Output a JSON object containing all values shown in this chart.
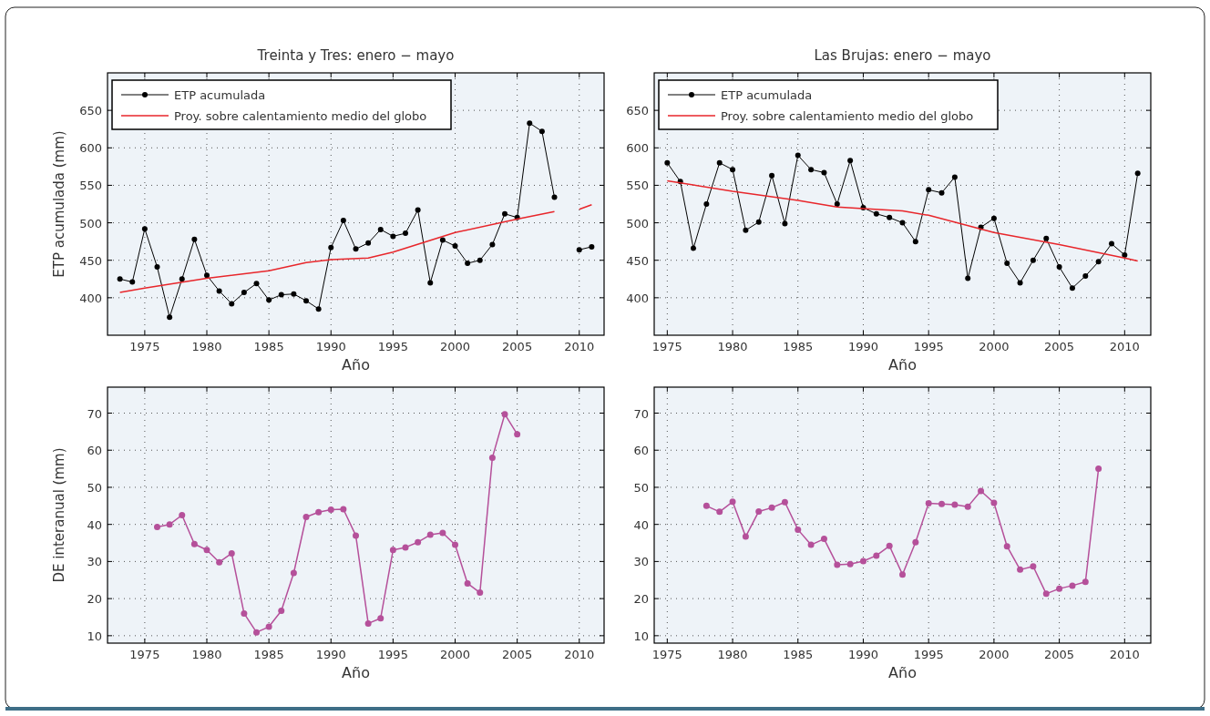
{
  "chart_data": [
    {
      "type": "line",
      "title": "Treinta y Tres: enero − mayo",
      "xlabel": "Año",
      "ylabel": "ETP acumulada (mm)",
      "xlim": [
        1972,
        2012
      ],
      "xticks": [
        1975,
        1980,
        1985,
        1990,
        1995,
        2000,
        2005,
        2010
      ],
      "ylim": [
        350,
        700
      ],
      "yticks": [
        400,
        450,
        500,
        550,
        600,
        650
      ],
      "grid": true,
      "legend": "top left",
      "series": [
        {
          "name": "ETP acumulada",
          "color": "#000000",
          "marker": "circle",
          "x": [
            1973,
            1974,
            1975,
            1976,
            1977,
            1978,
            1979,
            1980,
            1981,
            1982,
            1983,
            1984,
            1985,
            1986,
            1987,
            1988,
            1989,
            1990,
            1991,
            1992,
            1993,
            1994,
            1995,
            1996,
            1997,
            1998,
            1999,
            2000,
            2001,
            2002,
            2003,
            2004,
            2005,
            2006,
            2007,
            2008,
            2009,
            2010,
            2011
          ],
          "values": [
            425,
            421,
            492,
            441,
            374,
            425,
            478,
            430,
            409,
            392,
            407,
            419,
            397,
            404,
            405,
            396,
            385,
            467,
            503,
            465,
            473,
            491,
            482,
            486,
            517,
            420,
            477,
            469,
            446,
            450,
            471,
            512,
            507,
            633,
            622,
            534,
            null,
            464,
            468
          ]
        },
        {
          "name": "Proy. sobre calentamiento medio del globo",
          "color": "#e8262b",
          "marker": "none",
          "x": [
            1973,
            1975,
            1980,
            1985,
            1988,
            1990,
            1993,
            1995,
            2000,
            2005,
            2008,
            2009,
            2010,
            2011
          ],
          "values": [
            407,
            413,
            426,
            436,
            447,
            451,
            453,
            461,
            487,
            505,
            515,
            null,
            518,
            524
          ]
        }
      ]
    },
    {
      "type": "line",
      "title": "Las Brujas: enero − mayo",
      "xlabel": "Año",
      "xlim": [
        1974,
        2012
      ],
      "xticks": [
        1975,
        1980,
        1985,
        1990,
        1995,
        2000,
        2005,
        2010
      ],
      "ylim": [
        350,
        700
      ],
      "yticks": [
        400,
        450,
        500,
        550,
        600,
        650
      ],
      "grid": true,
      "legend": "top left",
      "series": [
        {
          "name": "ETP acumulada",
          "color": "#000000",
          "marker": "circle",
          "x": [
            1975,
            1976,
            1977,
            1978,
            1979,
            1980,
            1981,
            1982,
            1983,
            1984,
            1985,
            1986,
            1987,
            1988,
            1989,
            1990,
            1991,
            1992,
            1993,
            1994,
            1995,
            1996,
            1997,
            1998,
            1999,
            2000,
            2001,
            2002,
            2003,
            2004,
            2005,
            2006,
            2007,
            2008,
            2009,
            2010,
            2011
          ],
          "values": [
            580,
            555,
            466,
            525,
            580,
            571,
            490,
            501,
            563,
            499,
            590,
            571,
            567,
            525,
            583,
            520,
            512,
            507,
            500,
            475,
            544,
            540,
            561,
            426,
            494,
            506,
            446,
            420,
            450,
            479,
            441,
            413,
            429,
            448,
            472,
            457,
            566
          ]
        },
        {
          "name": "Proy. sobre calentamiento medio del globo",
          "color": "#e8262b",
          "marker": "none",
          "x": [
            1975,
            1980,
            1985,
            1988,
            1990,
            1993,
            1995,
            2000,
            2005,
            2010,
            2011
          ],
          "values": [
            556,
            542,
            530,
            521,
            519,
            516,
            510,
            487,
            471,
            453,
            449
          ]
        }
      ]
    },
    {
      "type": "line",
      "xlabel": "Año",
      "ylabel": "DE interanual (mm)",
      "xlim": [
        1972,
        2012
      ],
      "xticks": [
        1975,
        1980,
        1985,
        1990,
        1995,
        2000,
        2005,
        2010
      ],
      "ylim": [
        8,
        77
      ],
      "yticks": [
        10,
        20,
        30,
        40,
        50,
        60,
        70
      ],
      "grid": true,
      "series": [
        {
          "color": "#b5509a",
          "marker": "circle",
          "x": [
            1976,
            1977,
            1978,
            1979,
            1980,
            1981,
            1982,
            1983,
            1984,
            1985,
            1986,
            1987,
            1988,
            1989,
            1990,
            1991,
            1992,
            1993,
            1994,
            1995,
            1996,
            1997,
            1998,
            1999,
            2000,
            2001,
            2002,
            2003,
            2004,
            2005
          ],
          "values": [
            39.3,
            40,
            42.5,
            34.7,
            33.1,
            29.8,
            32.2,
            16,
            10.9,
            12.4,
            16.7,
            26.9,
            42,
            43.3,
            44,
            44.1,
            37,
            13.3,
            14.7,
            33.1,
            33.8,
            35.2,
            37.2,
            37.7,
            34.5,
            24.1,
            21.6,
            58,
            69.7,
            64.3
          ]
        }
      ]
    },
    {
      "type": "line",
      "xlabel": "Año",
      "xlim": [
        1974,
        2012
      ],
      "xticks": [
        1975,
        1980,
        1985,
        1990,
        1995,
        2000,
        2005,
        2010
      ],
      "ylim": [
        8,
        77
      ],
      "yticks": [
        10,
        20,
        30,
        40,
        50,
        60,
        70
      ],
      "grid": true,
      "series": [
        {
          "color": "#b5509a",
          "marker": "circle",
          "x": [
            1978,
            1979,
            1980,
            1981,
            1982,
            1983,
            1984,
            1985,
            1986,
            1987,
            1988,
            1989,
            1990,
            1991,
            1992,
            1993,
            1994,
            1995,
            1996,
            1997,
            1998,
            1999,
            2000,
            2001,
            2002,
            2003,
            2004,
            2005,
            2006,
            2007,
            2008
          ],
          "values": [
            45,
            43.4,
            46.1,
            36.7,
            43.5,
            44.5,
            46,
            38.6,
            34.5,
            36.1,
            29.1,
            29.3,
            30.1,
            31.6,
            34.2,
            26.5,
            35.2,
            45.7,
            45.5,
            45.3,
            44.8,
            49,
            45.8,
            34.1,
            27.8,
            28.7,
            21.3,
            22.7,
            23.5,
            24.5,
            55
          ]
        }
      ]
    }
  ]
}
